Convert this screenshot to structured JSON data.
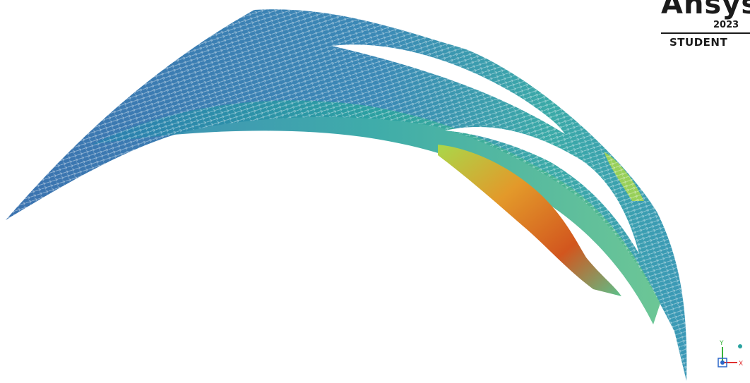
{
  "viewport": {
    "content": "vector-field",
    "colors": {
      "low": "#2a66a8",
      "low_mid": "#2aa3a0",
      "mid": "#5cc08a",
      "high_mid": "#a9d84a",
      "high": "#e3992a",
      "max": "#d2561e",
      "background": "#ffffff"
    }
  },
  "watermark": {
    "brand": "Ansys",
    "year": "2023",
    "edition": "STUDENT"
  },
  "triad": {
    "y_label": "Y",
    "x_label": "X",
    "y_color": "#3bb33b",
    "x_color": "#e03030",
    "z_color": "#2a66c8",
    "icon": "axis-triad-icon"
  }
}
